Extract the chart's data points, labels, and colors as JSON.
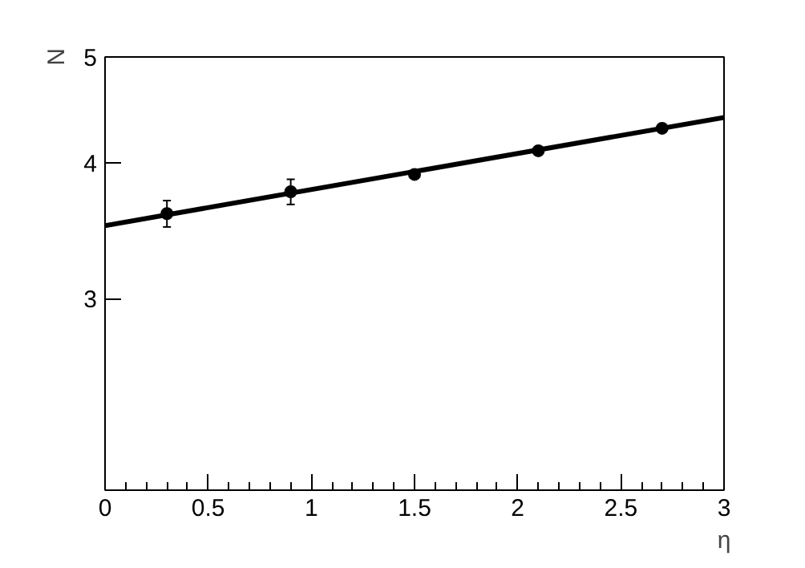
{
  "chart_data": {
    "type": "scatter",
    "xlabel": "η",
    "ylabel": "N",
    "x": [
      0.3,
      0.9,
      1.5,
      2.1,
      2.7
    ],
    "series": [
      {
        "color": "#000000",
        "values": [
          3.59,
          3.76,
          3.9,
          4.1,
          4.3
        ],
        "errors": [
          0.1,
          0.1,
          0.03,
          0.03,
          0.03
        ],
        "marker": "circle"
      },
      {
        "type": "line",
        "color": "#000000",
        "x": [
          0,
          3
        ],
        "values": [
          3.5,
          4.4
        ],
        "line_style": "solid"
      }
    ],
    "xlim": [
      0,
      3
    ],
    "xticks": [
      0,
      0.5,
      1,
      1.5,
      2,
      2.5,
      3
    ],
    "ylim": [
      2,
      5
    ],
    "yticks": [
      3,
      4,
      5
    ],
    "log": "y",
    "grid": false
  }
}
